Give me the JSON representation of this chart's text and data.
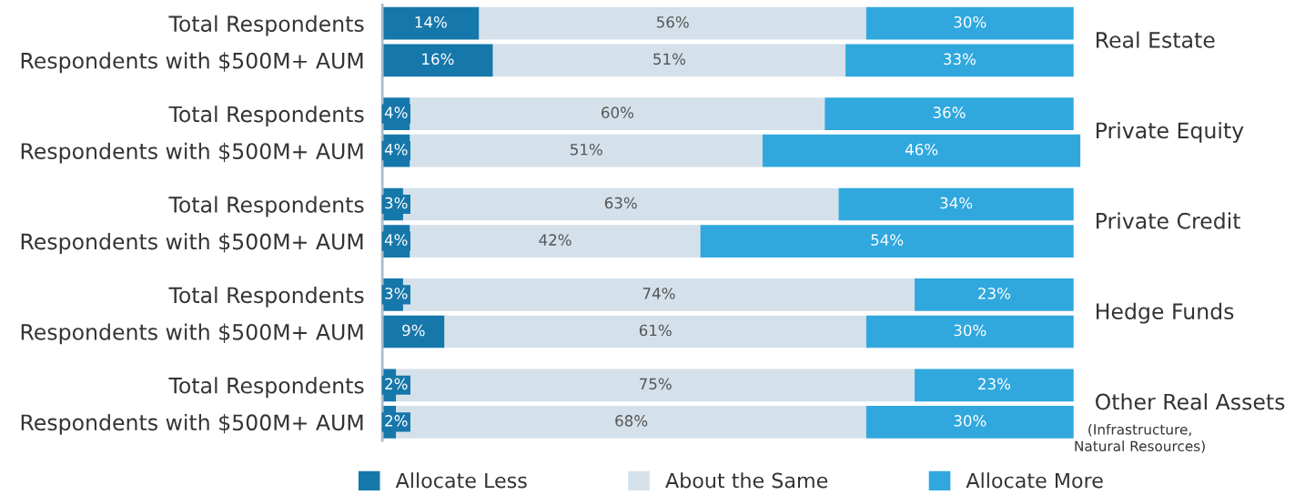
{
  "chart_data": {
    "type": "bar",
    "orientation": "horizontal",
    "stacked": true,
    "legend": "bottom",
    "grid": false,
    "categories": [
      "Total Respondents",
      "Respondents with $500M+ AUM",
      "Total Respondents",
      "Respondents with $500M+ AUM",
      "Total Respondents",
      "Respondents with $500M+ AUM",
      "Total Respondents",
      "Respondents with $500M+ AUM",
      "Total Respondents",
      "Respondents with $500M+ AUM"
    ],
    "series": [
      {
        "name": "Allocate Less",
        "color": "#1677aa",
        "values": [
          14,
          16,
          4,
          4,
          3,
          4,
          3,
          9,
          2,
          2
        ],
        "value_labels": [
          "14%",
          "16%",
          "4%",
          "4%",
          "3%",
          "4%",
          "3%",
          "9%",
          "2%",
          "2%"
        ]
      },
      {
        "name": "About the Same",
        "color": "#d5e1ea",
        "values": [
          56,
          51,
          60,
          51,
          63,
          42,
          74,
          61,
          75,
          68
        ],
        "value_labels": [
          "56%",
          "51%",
          "60%",
          "51%",
          "63%",
          "42%",
          "74%",
          "61%",
          "75%",
          "68%"
        ]
      },
      {
        "name": "Allocate More",
        "color": "#30a8de",
        "values": [
          30,
          33,
          36,
          46,
          34,
          54,
          23,
          30,
          23,
          30
        ],
        "value_labels": [
          "30%",
          "33%",
          "36%",
          "46%",
          "34%",
          "54%",
          "23%",
          "30%",
          "23%",
          "30%"
        ]
      }
    ],
    "annotations": [
      "Real Estate",
      "Private Equity",
      "Private Credit",
      "Hedge Funds",
      "Other Real Assets",
      "(Infrastructure,\nNatural Resources)"
    ]
  }
}
